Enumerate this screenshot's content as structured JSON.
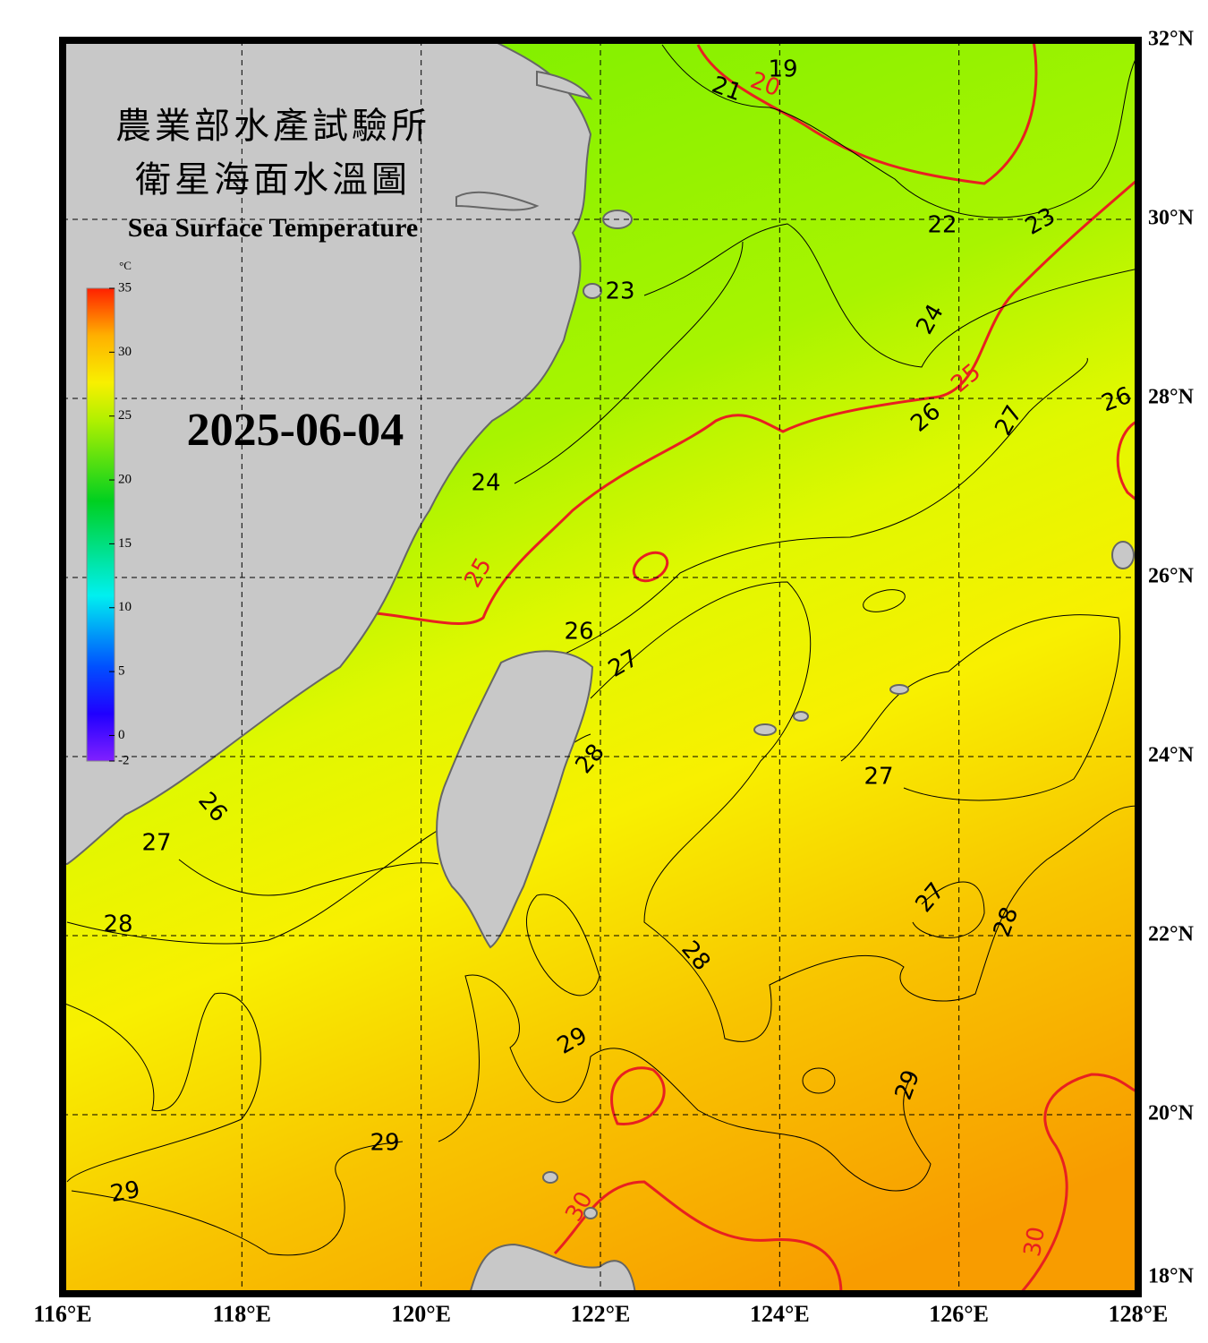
{
  "header": {
    "title_zh_1": "農業部水產試驗所",
    "title_zh_2": "衛星海面水溫圖",
    "title_en": "Sea Surface Temperature",
    "date": "2025-06-04"
  },
  "colorbar": {
    "unit": "°C",
    "ticks": [
      -2,
      0,
      5,
      10,
      15,
      20,
      25,
      30,
      35
    ],
    "range": [
      -2,
      35
    ]
  },
  "map": {
    "lonlim": [
      116,
      128
    ],
    "latlim": [
      18,
      32
    ],
    "lonticks": [
      {
        "value": 116,
        "label": "116°E"
      },
      {
        "value": 118,
        "label": "118°E"
      },
      {
        "value": 120,
        "label": "120°E"
      },
      {
        "value": 122,
        "label": "122°E"
      },
      {
        "value": 124,
        "label": "124°E"
      },
      {
        "value": 126,
        "label": "126°E"
      },
      {
        "value": 128,
        "label": "128°E"
      }
    ],
    "latticks": [
      {
        "value": 18,
        "label": "18°N"
      },
      {
        "value": 20,
        "label": "20°N"
      },
      {
        "value": 22,
        "label": "22°N"
      },
      {
        "value": 24,
        "label": "24°N"
      },
      {
        "value": 26,
        "label": "26°N"
      },
      {
        "value": 28,
        "label": "28°N"
      },
      {
        "value": 30,
        "label": "30°N"
      },
      {
        "value": 32,
        "label": "32°N"
      }
    ],
    "contour_labels": [
      19,
      20,
      21,
      22,
      23,
      23,
      24,
      25,
      26,
      27,
      26,
      24,
      25,
      26,
      27,
      28,
      27,
      26,
      27,
      28,
      27,
      28,
      28,
      29,
      29,
      29,
      29,
      30,
      30
    ]
  }
}
